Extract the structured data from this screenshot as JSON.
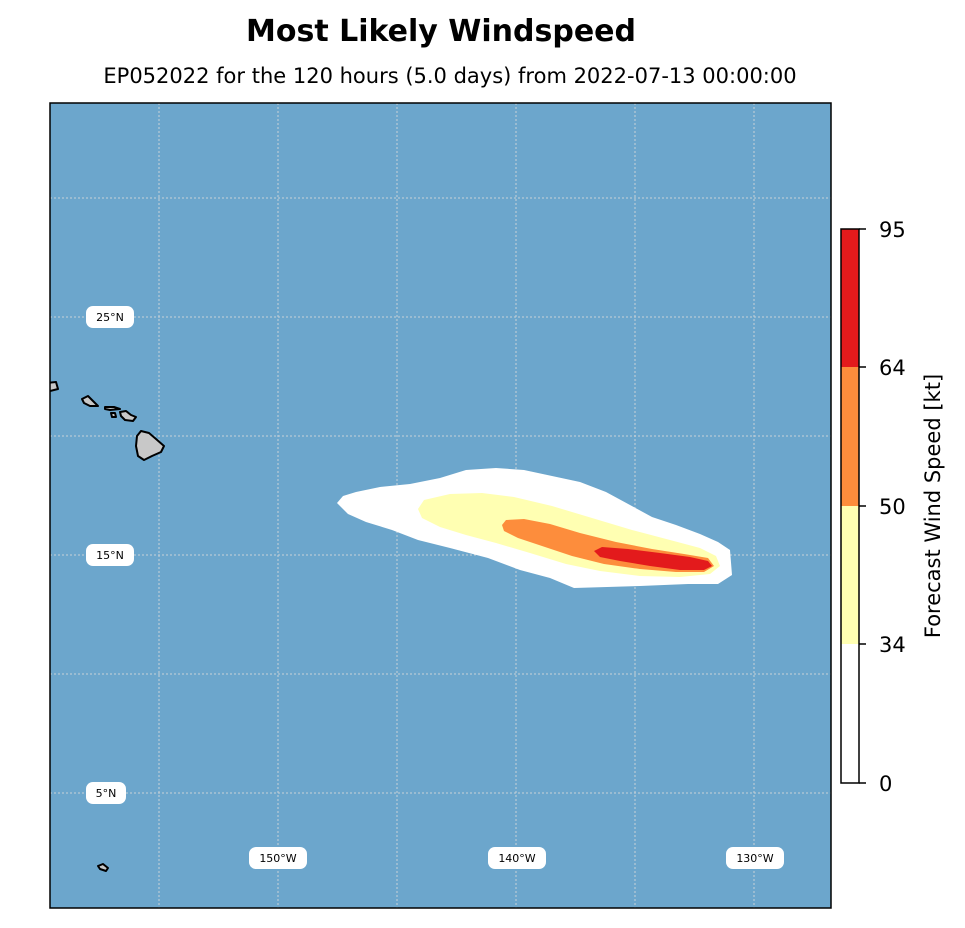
{
  "title": "Most Likely Windspeed",
  "subtitle": "EP052022 for the 120 hours (5.0 days) from 2022-07-13 00:00:00",
  "colors": {
    "ocean": "#6ca6cc",
    "band_0_34": "#ffffff",
    "band_34_50": "#ffffb2",
    "band_50_64": "#fd8d3c",
    "band_64_95": "#e31a1c",
    "land": "#c8c8c8",
    "grid": "#d9d9d9"
  },
  "map": {
    "lat_labels": [
      "25°N",
      "15°N",
      "5°N"
    ],
    "lon_labels": [
      "150°W",
      "140°W",
      "130°W"
    ]
  },
  "colorbar": {
    "label": "Forecast Wind Speed [kt]",
    "ticks": [
      "95",
      "64",
      "50",
      "34",
      "0"
    ]
  }
}
